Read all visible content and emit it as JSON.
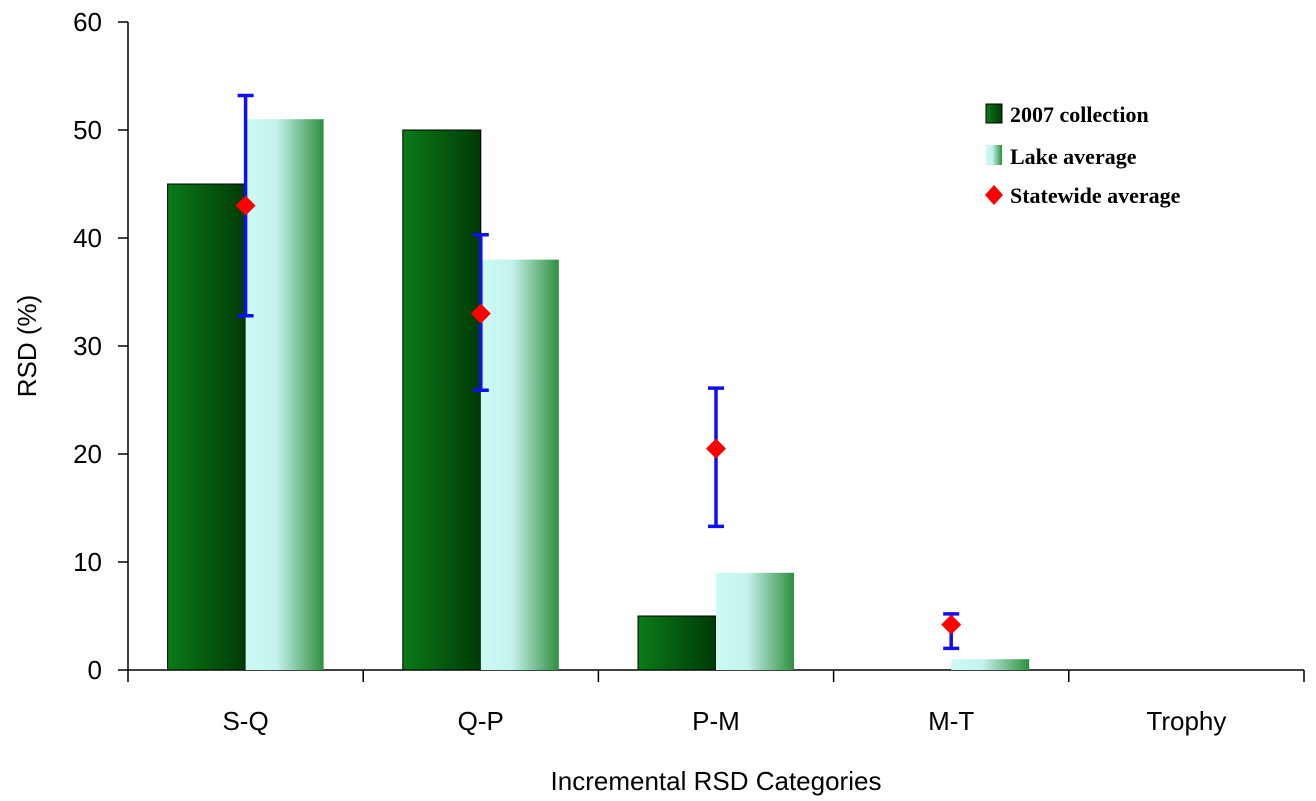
{
  "chart_data": {
    "type": "bar",
    "title": "",
    "xlabel": "Incremental RSD Categories",
    "ylabel": "RSD (%)",
    "ylim": [
      0,
      60
    ],
    "yticks": [
      "0",
      "10",
      "20",
      "30",
      "40",
      "50",
      "60"
    ],
    "categories": [
      "S-Q",
      "Q-P",
      "P-M",
      "M-T",
      "Trophy"
    ],
    "series": [
      {
        "name": "2007 collection",
        "type": "bar",
        "values": [
          45,
          50,
          5,
          0,
          0
        ],
        "color": "#0a6e14"
      },
      {
        "name": "Lake average",
        "type": "bar",
        "values": [
          51,
          38,
          9,
          1,
          0
        ],
        "color": "#ccfbf5"
      },
      {
        "name": "Statewide average",
        "type": "point",
        "values": [
          43,
          33,
          20.5,
          4.2,
          null
        ],
        "error_low": [
          32.8,
          25.9,
          13.3,
          2.0,
          null
        ],
        "error_high": [
          53.2,
          40.3,
          26.1,
          5.2,
          null
        ],
        "color": "#ff0000",
        "error_color": "#1010ee"
      }
    ],
    "grid": false,
    "legend": "top-right"
  }
}
